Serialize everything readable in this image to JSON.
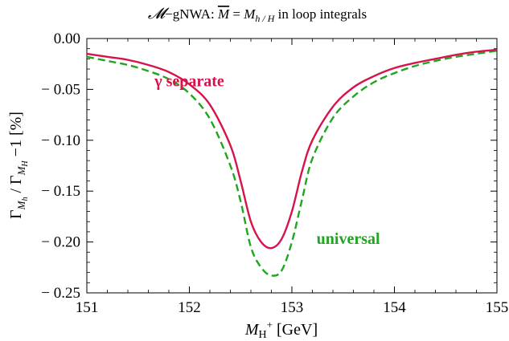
{
  "chart_data": {
    "type": "line",
    "title": "𝓜−gNWA: M̅ = M_h/H  in loop integrals",
    "title_parts": {
      "lead": "𝓜",
      "mid": "−gNWA: ",
      "mbar": "M",
      "eq": " = ",
      "m": "M",
      "sub": "h / H",
      "tail": "  in loop integrals"
    },
    "xlabel": "M_H+ [GeV]",
    "xlabel_parts": {
      "m": "M",
      "sub": "H",
      "sup": "+",
      "unit": " [GeV]"
    },
    "ylabel": "Γ_Mh / Γ_MH − 1 [%]",
    "ylabel_parts": {
      "g1": "Γ",
      "s1": "M",
      "ss1": "h",
      "slash": " / ",
      "g2": "Γ",
      "s2": "M",
      "ss2": "H",
      "tail": " −1 [%]"
    },
    "xlim": [
      151,
      155
    ],
    "ylim": [
      -0.25,
      0.0
    ],
    "xticks": [
      151,
      152,
      153,
      154,
      155
    ],
    "xtick_labels": [
      "151",
      "152",
      "153",
      "154",
      "155"
    ],
    "yticks": [
      0.0,
      -0.05,
      -0.1,
      -0.15,
      -0.2,
      -0.25
    ],
    "ytick_labels": [
      "0.00",
      "− 0.05",
      "− 0.10",
      "− 0.15",
      "− 0.20",
      "− 0.25"
    ],
    "grid": false,
    "series": [
      {
        "name": "γ separate",
        "color": "#d6134a",
        "dash": "solid",
        "x": [
          151.0,
          151.2,
          151.4,
          151.6,
          151.8,
          152.0,
          152.2,
          152.4,
          152.5,
          152.6,
          152.7,
          152.8,
          152.9,
          153.0,
          153.1,
          153.2,
          153.4,
          153.6,
          153.8,
          154.0,
          154.2,
          154.4,
          154.6,
          154.8,
          155.0
        ],
        "y": [
          -0.015,
          -0.018,
          -0.021,
          -0.026,
          -0.033,
          -0.045,
          -0.065,
          -0.105,
          -0.14,
          -0.18,
          -0.2,
          -0.206,
          -0.197,
          -0.17,
          -0.13,
          -0.1,
          -0.067,
          -0.048,
          -0.037,
          -0.029,
          -0.024,
          -0.02,
          -0.016,
          -0.013,
          -0.011
        ]
      },
      {
        "name": "universal",
        "color": "#1fa51f",
        "dash": "dashed",
        "x": [
          151.0,
          151.2,
          151.4,
          151.6,
          151.8,
          152.0,
          152.2,
          152.4,
          152.5,
          152.6,
          152.7,
          152.8,
          152.9,
          153.0,
          153.1,
          153.2,
          153.4,
          153.6,
          153.8,
          154.0,
          154.2,
          154.4,
          154.6,
          154.8,
          155.0
        ],
        "y": [
          -0.018,
          -0.022,
          -0.026,
          -0.032,
          -0.04,
          -0.054,
          -0.079,
          -0.125,
          -0.16,
          -0.205,
          -0.225,
          -0.233,
          -0.228,
          -0.2,
          -0.158,
          -0.118,
          -0.078,
          -0.057,
          -0.043,
          -0.034,
          -0.027,
          -0.022,
          -0.018,
          -0.015,
          -0.012
        ]
      }
    ],
    "annotations": [
      {
        "text": "γ  separate",
        "series": 0,
        "x": 152.0,
        "y": -0.047
      },
      {
        "text": "universal",
        "series": 1,
        "x": 153.55,
        "y": -0.202
      }
    ]
  }
}
